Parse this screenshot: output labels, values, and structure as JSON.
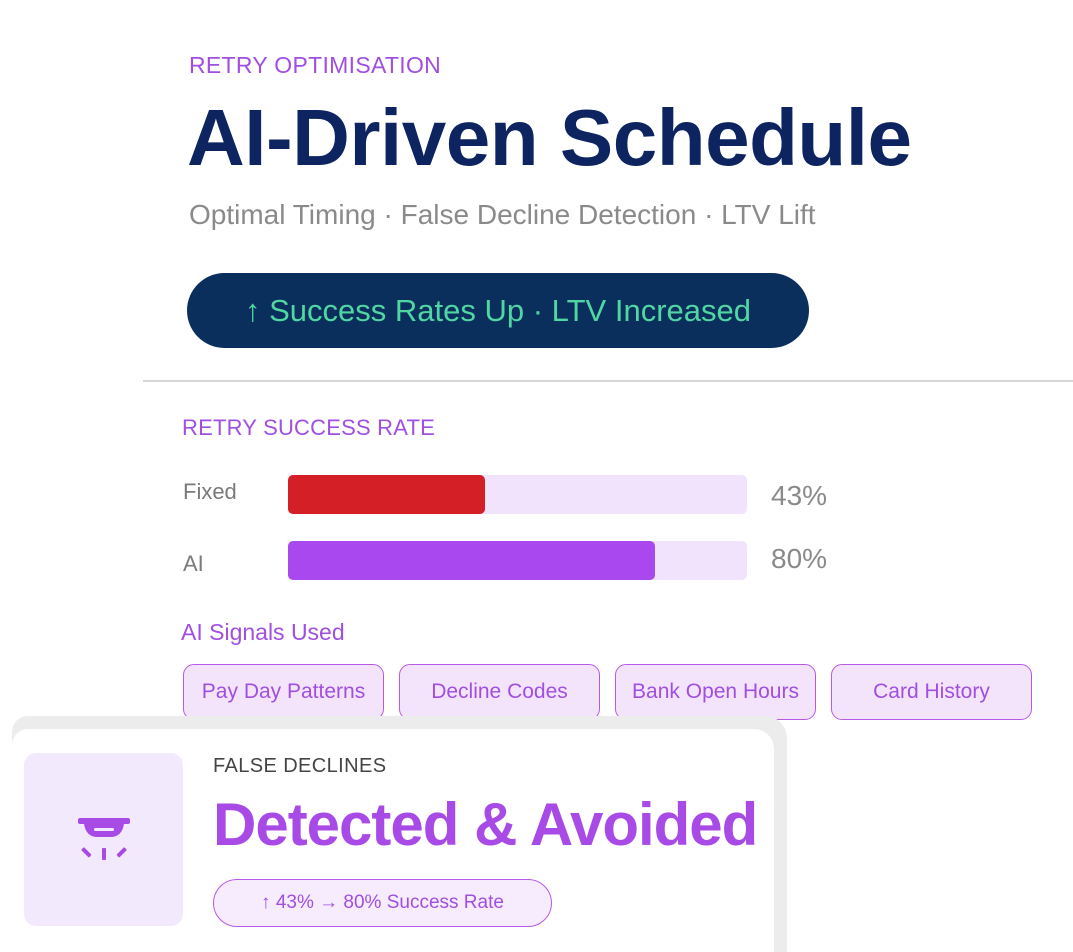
{
  "header": {
    "eyebrow": "RETRY OPTIMISATION",
    "title": "AI-Driven Schedule",
    "subtitle": "Optimal Timing · False Decline Detection · LTV Lift",
    "badge": "↑ Success Rates Up · LTV Increased"
  },
  "colors": {
    "navy": "#0d2460",
    "badge_bg": "#0b2f5c",
    "badge_text": "#4fd6a2",
    "accent_purple": "#a84ae6",
    "fixed_bar": "#d41f26",
    "ai_bar": "#aa48f0",
    "track": "#f1e3fb"
  },
  "success_rate": {
    "label": "RETRY SUCCESS RATE",
    "rows": [
      {
        "label": "Fixed",
        "value": "43%",
        "fraction": 0.43,
        "color": "#d41f26"
      },
      {
        "label": "AI",
        "value": "80%",
        "fraction": 0.8,
        "color": "#aa48f0"
      }
    ]
  },
  "signals": {
    "label": "AI Signals Used",
    "items": [
      "Pay Day Patterns",
      "Decline Codes",
      "Bank Open Hours",
      "Card History"
    ]
  },
  "false_declines": {
    "icon": "alarm-light-icon",
    "eyebrow": "FALSE DECLINES",
    "title": "Detected & Avoided",
    "badge": "↑ 43% → 80% Success Rate"
  }
}
